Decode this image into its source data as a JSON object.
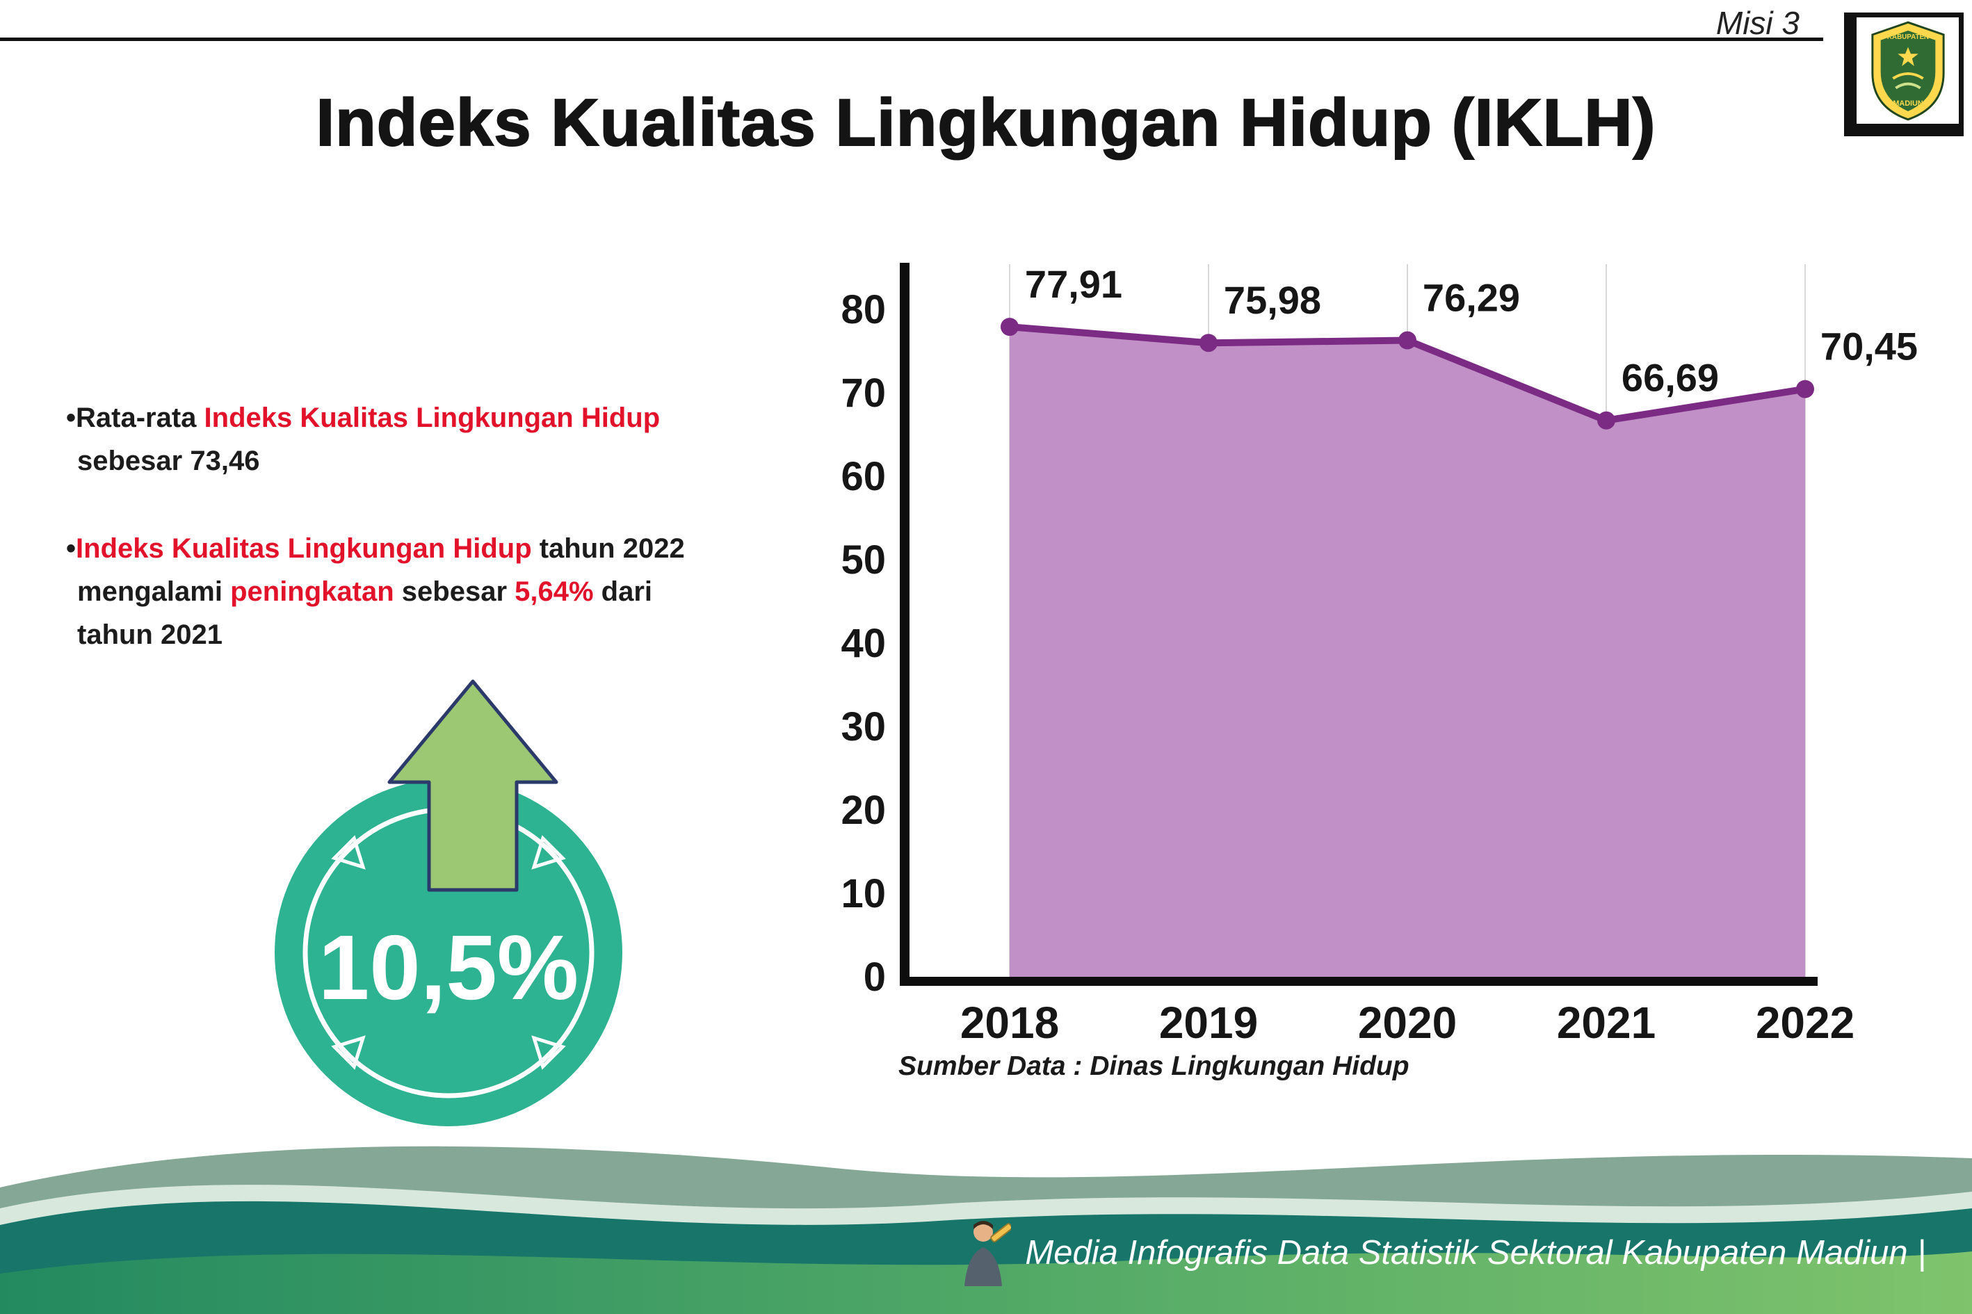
{
  "header": {
    "misi_label": "Misi 3",
    "title": "Indeks Kualitas Lingkungan Hidup (IKLH)"
  },
  "logo": {
    "top_label": "KABUPATEN",
    "bottom_label": "MADIUN"
  },
  "bullets": {
    "dot": "•",
    "item1": {
      "l1_black": "Rata-rata ",
      "l1_red": "Indeks Kualitas Lingkungan Hidup",
      "l2_black": "sebesar 73,46"
    },
    "item2": {
      "l1_red": "Indeks Kualitas Lingkungan Hidup",
      "l1_black": " tahun 2022",
      "l2_black1": "mengalami ",
      "l2_red1": "peningkatan",
      "l2_black2": " sebesar ",
      "l2_red2": "5,64%",
      "l2_black3": " dari",
      "l3_black": "tahun 2021"
    }
  },
  "badge": {
    "value": "10,5%"
  },
  "chart_data": {
    "type": "area",
    "title": "",
    "categories": [
      "2018",
      "2019",
      "2020",
      "2021",
      "2022"
    ],
    "values": [
      77.91,
      75.98,
      76.29,
      66.69,
      70.45
    ],
    "value_labels": [
      "77,91",
      "75,98",
      "76,29",
      "66,69",
      "70,45"
    ],
    "ylim": [
      0,
      80
    ],
    "yticks": [
      0,
      10,
      20,
      30,
      40,
      50,
      60,
      70,
      80
    ],
    "grid": "vertical",
    "legend": "none",
    "fill_color": "#c190c6",
    "line_color": "#7b2b84",
    "source_note": "Sumber Data : Dinas Lingkungan Hidup"
  },
  "footer": {
    "credit": "Media Infografis Data Statistik Sektoral Kabupaten Madiun |"
  },
  "colors": {
    "accent_red": "#e2122b",
    "badge_teal": "#2db392",
    "arrow_green": "#9cc873",
    "chart_fill": "#c190c6",
    "chart_line": "#7b2b84"
  }
}
